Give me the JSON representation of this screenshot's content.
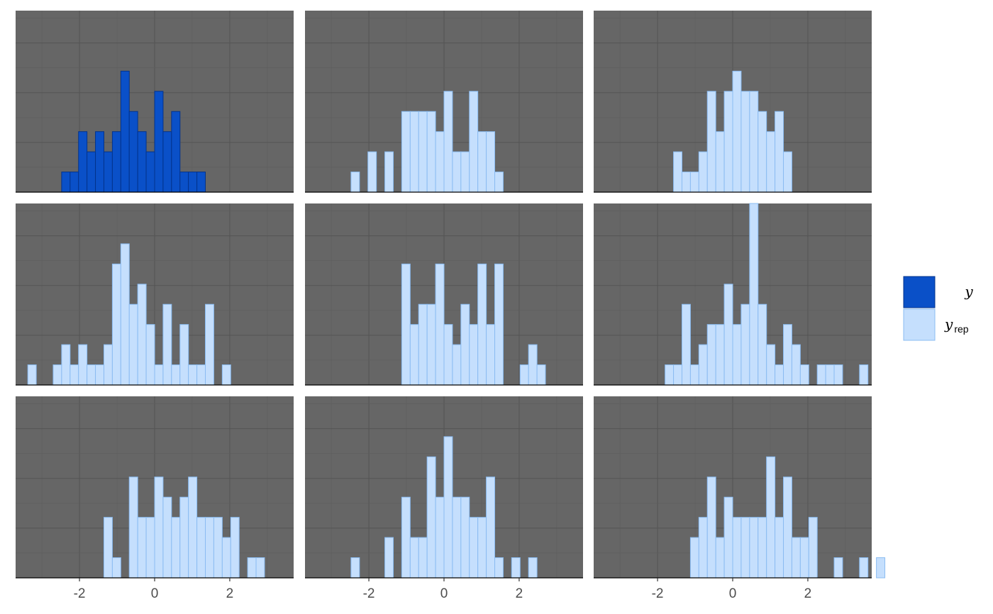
{
  "colors": {
    "panel_bg": "#666666",
    "grid_major": "#555555",
    "grid_minor": "#5e5e5e",
    "y_fill": "#0a50c8",
    "y_stroke": "#03338c",
    "yrep_fill": "#c5dffd",
    "yrep_stroke": "#8bbcf2",
    "axis_line": "#000000"
  },
  "legend": {
    "items": [
      {
        "label": "y",
        "sub": "",
        "kind": "y"
      },
      {
        "label": "y",
        "sub": "rep",
        "kind": "yrep"
      }
    ]
  },
  "chart_data": {
    "type": "bar",
    "layout": "facet 3x3 histograms",
    "x_range": [
      -3.7,
      3.7
    ],
    "bin_width": 0.225,
    "bin_start": -3.375,
    "x_ticks": [
      -2,
      0,
      2
    ],
    "x_tick_labels": [
      "-2",
      "0",
      "2"
    ],
    "y_max": 9,
    "grid": true,
    "legend_position": "right",
    "panels": [
      {
        "kind": "y",
        "counts": [
          0,
          0,
          0,
          0,
          1,
          1,
          3,
          2,
          3,
          2,
          3,
          6,
          4,
          3,
          2,
          5,
          3,
          4,
          1,
          1,
          1,
          0,
          0,
          0,
          0,
          0,
          0,
          0,
          0,
          0
        ]
      },
      {
        "kind": "yrep",
        "counts": [
          0,
          0,
          0,
          0,
          1,
          0,
          2,
          0,
          2,
          0,
          4,
          4,
          4,
          4,
          3,
          5,
          2,
          2,
          5,
          3,
          3,
          1,
          0,
          0,
          0,
          0,
          0,
          0,
          0,
          0
        ]
      },
      {
        "kind": "yrep",
        "counts": [
          0,
          0,
          0,
          0,
          0,
          0,
          0,
          0,
          2,
          1,
          1,
          2,
          5,
          3,
          5,
          6,
          5,
          5,
          4,
          3,
          4,
          2,
          0,
          0,
          0,
          0,
          0,
          0,
          0,
          0
        ]
      },
      {
        "kind": "yrep",
        "counts": [
          1,
          0,
          0,
          1,
          2,
          1,
          2,
          1,
          1,
          2,
          6,
          7,
          4,
          5,
          3,
          1,
          4,
          1,
          3,
          1,
          1,
          4,
          0,
          1,
          0,
          0,
          0,
          0,
          0,
          0
        ]
      },
      {
        "kind": "yrep",
        "counts": [
          0,
          0,
          0,
          0,
          0,
          0,
          0,
          0,
          0,
          0,
          6,
          3,
          4,
          4,
          6,
          3,
          2,
          4,
          3,
          6,
          3,
          6,
          0,
          0,
          1,
          2,
          1,
          0,
          0,
          0
        ]
      },
      {
        "kind": "yrep",
        "counts": [
          0,
          0,
          0,
          0,
          0,
          0,
          0,
          1,
          1,
          4,
          1,
          2,
          3,
          3,
          5,
          3,
          4,
          9,
          4,
          2,
          1,
          3,
          2,
          1,
          0,
          1,
          1,
          1,
          0,
          0,
          1
        ]
      },
      {
        "kind": "yrep",
        "counts": [
          0,
          0,
          0,
          0,
          0,
          0,
          0,
          0,
          0,
          3,
          1,
          0,
          5,
          3,
          3,
          5,
          4,
          3,
          4,
          5,
          3,
          3,
          3,
          2,
          3,
          0,
          1,
          1,
          0,
          0
        ]
      },
      {
        "kind": "yrep",
        "counts": [
          0,
          0,
          0,
          0,
          1,
          0,
          0,
          0,
          2,
          0,
          4,
          2,
          2,
          6,
          4,
          7,
          4,
          4,
          3,
          3,
          5,
          1,
          0,
          1,
          0,
          1,
          0,
          0,
          0,
          0
        ]
      },
      {
        "kind": "yrep",
        "counts": [
          0,
          0,
          0,
          0,
          0,
          0,
          0,
          0,
          0,
          0,
          2,
          3,
          5,
          2,
          4,
          3,
          3,
          3,
          3,
          6,
          3,
          5,
          2,
          2,
          3,
          0,
          0,
          1,
          0,
          0,
          1,
          0,
          1
        ]
      }
    ]
  }
}
